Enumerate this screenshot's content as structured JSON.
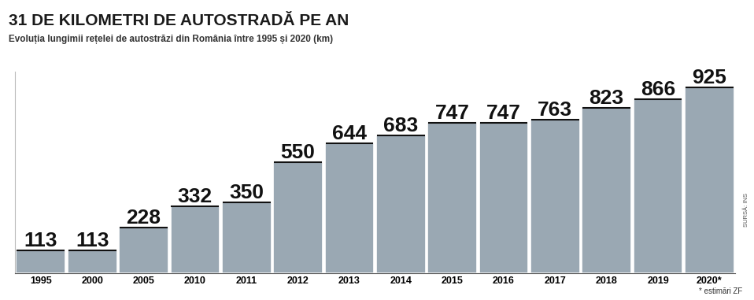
{
  "chart_data": {
    "type": "bar",
    "title": "31 DE KILOMETRI DE AUTOSTRADĂ PE AN",
    "subtitle": "Evoluția lungimii rețelei de autostrăzi din România între 1995 și 2020 (km)",
    "categories": [
      "1995",
      "2000",
      "2005",
      "2010",
      "2011",
      "2012",
      "2013",
      "2014",
      "2015",
      "2016",
      "2017",
      "2018",
      "2019",
      "2020*"
    ],
    "values": [
      113,
      113,
      228,
      332,
      350,
      550,
      644,
      683,
      747,
      747,
      763,
      823,
      866,
      925
    ],
    "color": "#9aa8b3",
    "ylim": [
      0,
      1000
    ],
    "yticks": [],
    "data_labels": true,
    "tick_labels": "x",
    "grid": false,
    "footnote": "* estimări ZF",
    "source": "SURSĂ: INS"
  }
}
